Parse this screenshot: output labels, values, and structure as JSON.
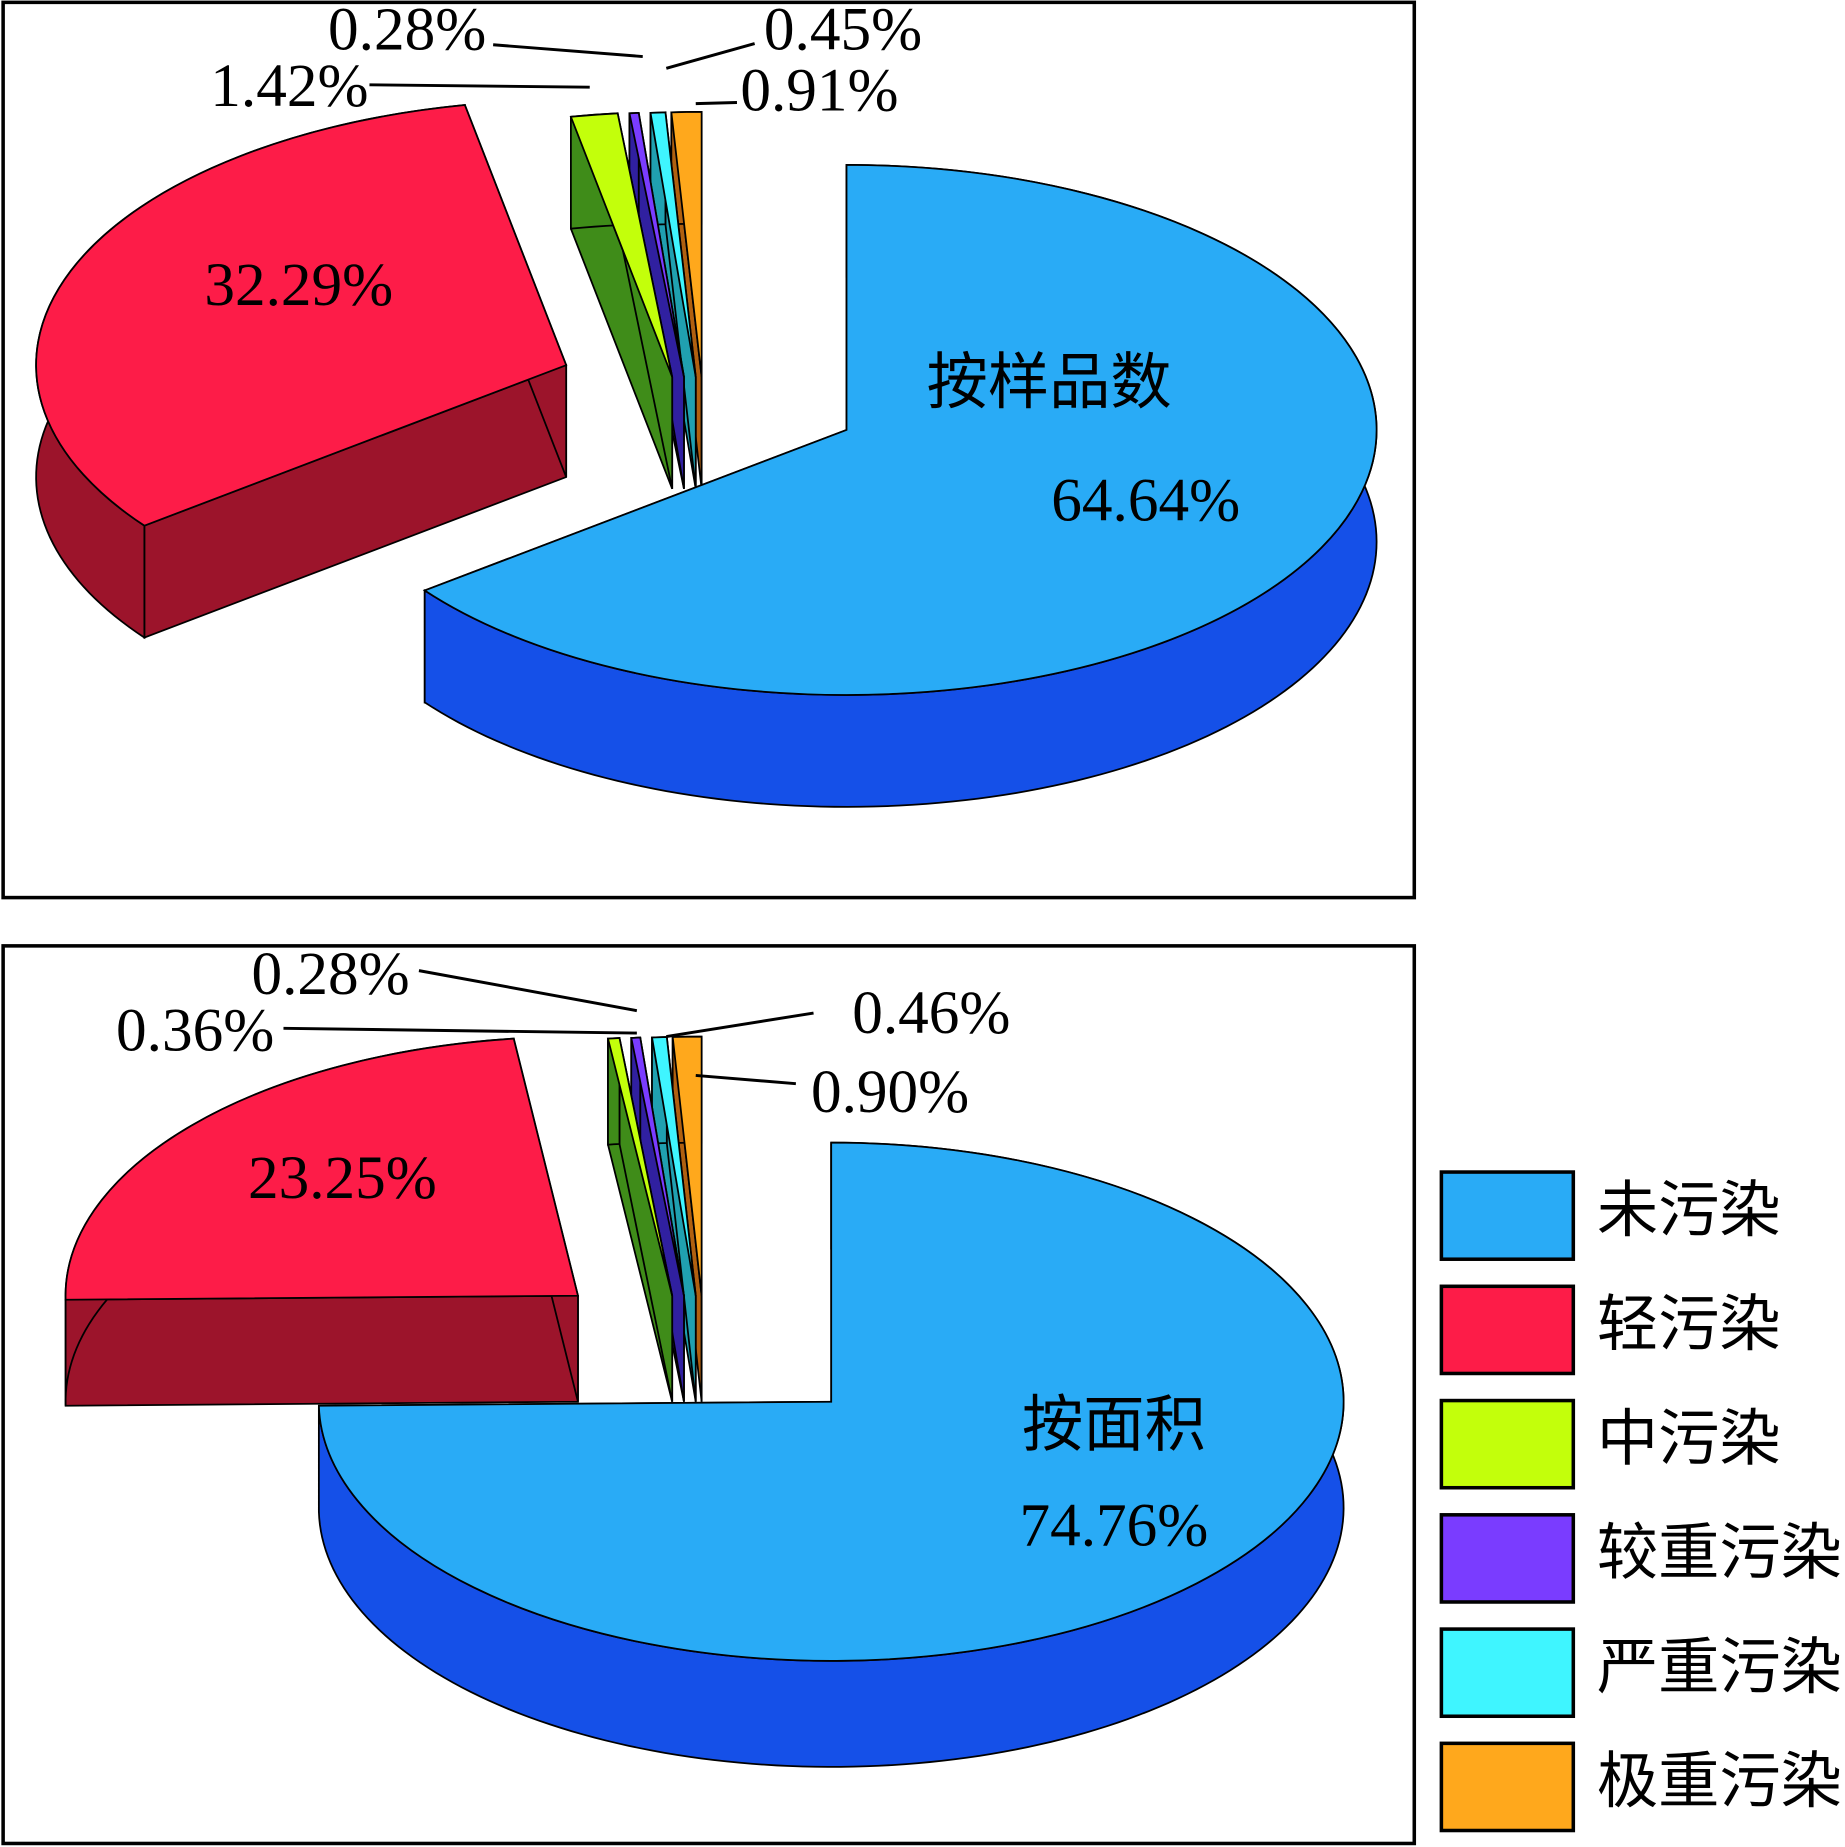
{
  "chart_data": [
    {
      "type": "pie",
      "label": "按样品数",
      "values": [
        64.64,
        32.29,
        1.42,
        0.28,
        0.45,
        0.91
      ],
      "value_labels": [
        "64.64%",
        "32.29%",
        "1.42%",
        "0.28%",
        "0.45%",
        "0.91%"
      ]
    },
    {
      "type": "pie",
      "label": "按面积",
      "values": [
        74.76,
        23.25,
        0.36,
        0.28,
        0.46,
        0.9
      ],
      "value_labels": [
        "74.76%",
        "23.25%",
        "0.36%",
        "0.28%",
        "0.46%",
        "0.90%"
      ]
    }
  ],
  "legend": {
    "labels": [
      "未污染",
      "轻污染",
      "中污染",
      "较重污染",
      "严重污染",
      "极重污染"
    ],
    "colors": [
      "#29abf6",
      "#fd1c48",
      "#c3ff0b",
      "#7a3cff",
      "#3ff5ff",
      "#ffa81c"
    ],
    "side_colors": [
      "#1550e8",
      "#9c142b",
      "#3f8c19",
      "#3020a0",
      "#20a0b0",
      "#b06010"
    ]
  }
}
